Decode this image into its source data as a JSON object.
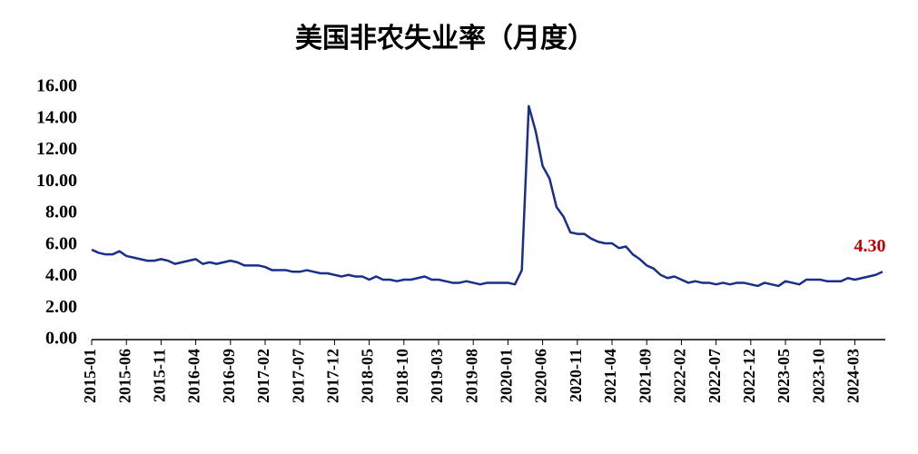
{
  "chart_data": {
    "type": "line",
    "title": "美国非农失业率（月度）",
    "categories": [
      "2015-01",
      null,
      null,
      null,
      null,
      "2015-06",
      null,
      null,
      null,
      null,
      "2015-11",
      null,
      null,
      null,
      null,
      "2016-04",
      null,
      null,
      null,
      null,
      "2016-09",
      null,
      null,
      null,
      null,
      "2017-02",
      null,
      null,
      null,
      null,
      "2017-07",
      null,
      null,
      null,
      null,
      "2017-12",
      null,
      null,
      null,
      null,
      "2018-05",
      null,
      null,
      null,
      null,
      "2018-10",
      null,
      null,
      null,
      null,
      "2019-03",
      null,
      null,
      null,
      null,
      "2019-08",
      null,
      null,
      null,
      null,
      "2020-01",
      null,
      null,
      null,
      null,
      "2020-06",
      null,
      null,
      null,
      null,
      "2020-11",
      null,
      null,
      null,
      null,
      "2021-04",
      null,
      null,
      null,
      null,
      "2021-09",
      null,
      null,
      null,
      null,
      "2022-02",
      null,
      null,
      null,
      null,
      "2022-07",
      null,
      null,
      null,
      null,
      "2022-12",
      null,
      null,
      null,
      null,
      "2023-05",
      null,
      null,
      null,
      null,
      "2023-10",
      null,
      null,
      null,
      null,
      "2024-03",
      null,
      null,
      null,
      null
    ],
    "values": [
      5.7,
      5.5,
      5.4,
      5.4,
      5.6,
      5.3,
      5.2,
      5.1,
      5.0,
      5.0,
      5.1,
      5.0,
      4.8,
      4.9,
      5.0,
      5.1,
      4.8,
      4.9,
      4.8,
      4.9,
      5.0,
      4.9,
      4.7,
      4.7,
      4.7,
      4.6,
      4.4,
      4.4,
      4.4,
      4.3,
      4.3,
      4.4,
      4.3,
      4.2,
      4.2,
      4.1,
      4.0,
      4.1,
      4.0,
      4.0,
      3.8,
      4.0,
      3.8,
      3.8,
      3.7,
      3.8,
      3.8,
      3.9,
      4.0,
      3.8,
      3.8,
      3.7,
      3.6,
      3.6,
      3.7,
      3.6,
      3.5,
      3.6,
      3.6,
      3.6,
      3.6,
      3.5,
      4.4,
      14.8,
      13.2,
      11.0,
      10.2,
      8.4,
      7.8,
      6.8,
      6.7,
      6.7,
      6.4,
      6.2,
      6.1,
      6.1,
      5.8,
      5.9,
      5.4,
      5.1,
      4.7,
      4.5,
      4.1,
      3.9,
      4.0,
      3.8,
      3.6,
      3.7,
      3.6,
      3.6,
      3.5,
      3.6,
      3.5,
      3.6,
      3.6,
      3.5,
      3.4,
      3.6,
      3.5,
      3.4,
      3.7,
      3.6,
      3.5,
      3.8,
      3.8,
      3.8,
      3.7,
      3.7,
      3.7,
      3.9,
      3.8,
      3.9,
      4.0,
      4.1,
      4.3
    ],
    "value_labels": [
      null,
      null,
      null,
      null,
      null,
      null,
      null,
      null,
      null,
      null,
      null,
      null,
      null,
      null,
      null,
      null,
      null,
      null,
      null,
      null,
      null,
      null,
      null,
      null,
      null,
      null,
      null,
      null,
      null,
      null,
      null,
      null,
      null,
      null,
      null,
      null,
      null,
      null,
      null,
      null,
      null,
      null,
      null,
      null,
      null,
      null,
      null,
      null,
      null,
      null,
      null,
      null,
      null,
      null,
      null,
      null,
      null,
      null,
      null,
      null,
      null,
      null,
      null,
      null,
      null,
      null,
      null,
      null,
      null,
      null,
      null,
      null,
      null,
      null,
      null,
      null,
      null,
      null,
      null,
      null,
      null,
      null,
      null,
      null,
      null,
      null,
      null,
      null,
      null,
      null,
      null,
      null,
      null,
      null,
      null,
      null,
      null,
      null,
      null,
      null,
      null,
      null,
      null,
      null,
      null,
      null,
      null,
      null,
      null,
      null,
      null,
      null,
      null,
      null,
      "4.30"
    ],
    "color": "#1b2f8a",
    "label_color": "#c00000",
    "ylim": [
      0,
      16
    ],
    "yticks": [
      {
        "value": 0,
        "label": "0.00"
      },
      {
        "value": 2,
        "label": "2.00"
      },
      {
        "value": 4,
        "label": "4.00"
      },
      {
        "value": 6,
        "label": "6.00"
      },
      {
        "value": 8,
        "label": "8.00"
      },
      {
        "value": 10,
        "label": "10.00"
      },
      {
        "value": 12,
        "label": "12.00"
      },
      {
        "value": 14,
        "label": "14.00"
      },
      {
        "value": 16,
        "label": "16.00"
      }
    ],
    "grid": false
  }
}
